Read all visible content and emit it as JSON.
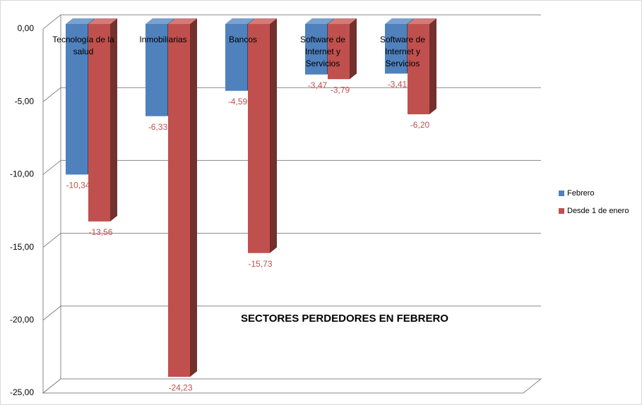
{
  "chart_data": {
    "type": "bar3d",
    "title": "SECTORES PERDEDORES EN FEBRERO",
    "categories": [
      "Tecnología de la salud",
      "Inmobiliarias",
      "Bancos",
      "Software de Internet y Servicios",
      "Software de Internet y Servicios"
    ],
    "series": [
      {
        "name": "Febrero",
        "color": "#4f81bd",
        "values": [
          -10.34,
          -6.33,
          -4.59,
          -3.47,
          -3.41
        ],
        "value_labels": [
          "-10,34",
          "-6,33",
          "-4,59",
          "-3,47",
          "-3,41"
        ]
      },
      {
        "name": "Desde 1 de enero",
        "color": "#c0504d",
        "values": [
          -13.56,
          -24.23,
          -15.73,
          -3.79,
          -6.2
        ],
        "value_labels": [
          "-13,56",
          "-24,23",
          "-15,73",
          "-3,79",
          "-6,20"
        ]
      }
    ],
    "ylim": [
      -25,
      0
    ],
    "yticks": [
      {
        "value": 0,
        "label": "0,00"
      },
      {
        "value": -5,
        "label": "-5,00"
      },
      {
        "value": -10,
        "label": "-10,00"
      },
      {
        "value": -15,
        "label": "-15,00"
      },
      {
        "value": -20,
        "label": "-20,00"
      },
      {
        "value": -25,
        "label": "-25,00"
      }
    ],
    "grid": true,
    "legend": "right"
  }
}
